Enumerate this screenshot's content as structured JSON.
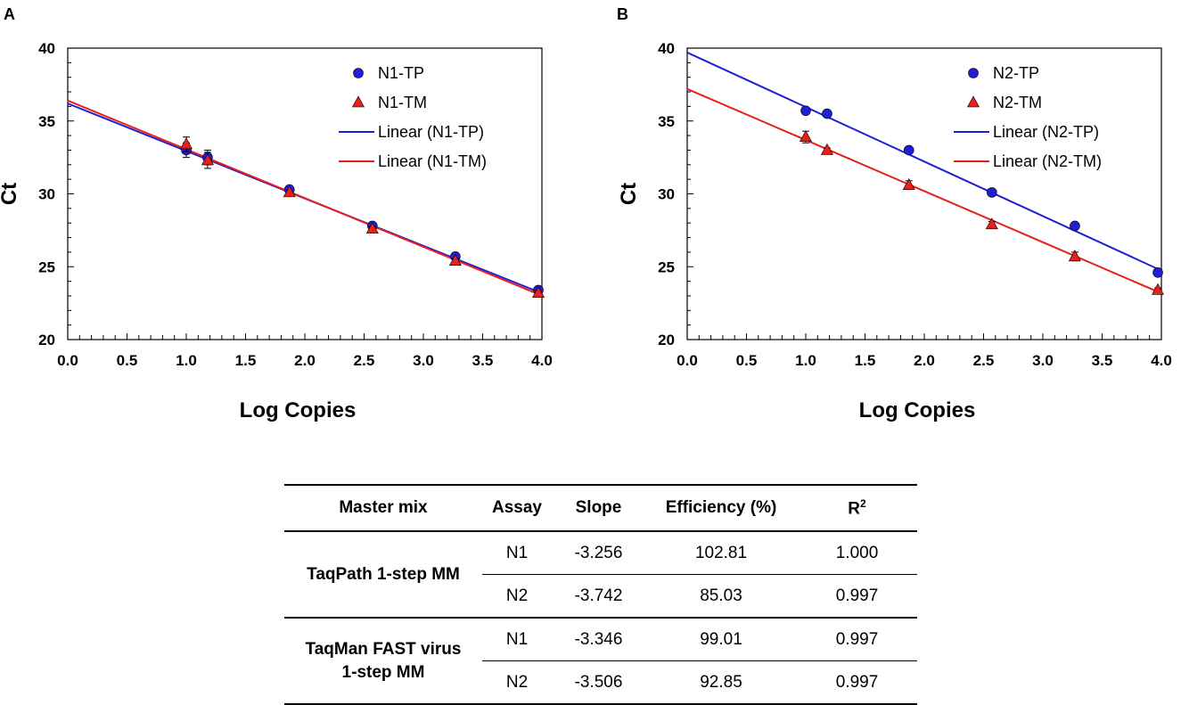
{
  "chart_data": [
    {
      "panel_label": "A",
      "type": "scatter",
      "xlabel": "Log Copies",
      "ylabel": "Ct",
      "xlim": [
        0.0,
        4.0
      ],
      "ylim": [
        20,
        40
      ],
      "xticks": [
        "0.0",
        "0.5",
        "1.0",
        "1.5",
        "2.0",
        "2.5",
        "3.0",
        "3.5",
        "4.0"
      ],
      "yticks": [
        "20",
        "25",
        "30",
        "35",
        "40"
      ],
      "series": [
        {
          "name": "N1-TP",
          "marker": "circle",
          "color": "#1f1fd6",
          "x": [
            1.0,
            1.18,
            1.87,
            2.57,
            3.27,
            3.97
          ],
          "y": [
            33.0,
            32.5,
            30.3,
            27.8,
            25.7,
            23.4
          ],
          "err": [
            0.5,
            0.5,
            0.15,
            0.15,
            0.15,
            0.1
          ]
        },
        {
          "name": "N1-TM",
          "marker": "triangle",
          "color": "#e8201a",
          "x": [
            1.0,
            1.18,
            1.87,
            2.57,
            3.27,
            3.97
          ],
          "y": [
            33.4,
            32.3,
            30.1,
            27.6,
            25.4,
            23.2
          ],
          "err": [
            0.5,
            0.55,
            0.15,
            0.15,
            0.15,
            0.1
          ]
        }
      ],
      "trendlines": [
        {
          "name": "Linear (N1-TP)",
          "color": "#1f1fd6",
          "slope": -3.256,
          "intercept": 36.2
        },
        {
          "name": "Linear (N1-TM)",
          "color": "#e8201a",
          "slope": -3.346,
          "intercept": 36.4
        }
      ]
    },
    {
      "panel_label": "B",
      "type": "scatter",
      "xlabel": "Log Copies",
      "ylabel": "Ct",
      "xlim": [
        0.0,
        4.0
      ],
      "ylim": [
        20,
        40
      ],
      "xticks": [
        "0.0",
        "0.5",
        "1.0",
        "1.5",
        "2.0",
        "2.5",
        "3.0",
        "3.5",
        "4.0"
      ],
      "yticks": [
        "20",
        "25",
        "30",
        "35",
        "40"
      ],
      "series": [
        {
          "name": "N2-TP",
          "marker": "circle",
          "color": "#1f1fd6",
          "x": [
            1.0,
            1.18,
            1.87,
            2.57,
            3.27,
            3.97
          ],
          "y": [
            35.7,
            35.5,
            33.0,
            30.1,
            27.8,
            24.6
          ],
          "err": [
            0.1,
            0.1,
            0.15,
            0.1,
            0.1,
            0.1
          ]
        },
        {
          "name": "N2-TM",
          "marker": "triangle",
          "color": "#e8201a",
          "x": [
            1.0,
            1.18,
            1.87,
            2.57,
            3.27,
            3.97
          ],
          "y": [
            33.9,
            33.0,
            30.6,
            27.9,
            25.7,
            23.4
          ],
          "err": [
            0.4,
            0.15,
            0.3,
            0.2,
            0.3,
            0.15
          ]
        }
      ],
      "trendlines": [
        {
          "name": "Linear (N2-TP)",
          "color": "#1f1fd6",
          "slope": -3.742,
          "intercept": 39.7
        },
        {
          "name": "Linear (N2-TM)",
          "color": "#e8201a",
          "slope": -3.506,
          "intercept": 37.2
        }
      ]
    }
  ],
  "table": {
    "headers": [
      "Master mix",
      "Assay",
      "Slope",
      "Efficiency (%)",
      "R"
    ],
    "r2_sup": "2",
    "groups": [
      {
        "master_mix": "TaqPath 1-step MM",
        "rows": [
          {
            "assay": "N1",
            "slope": "-3.256",
            "efficiency": "102.81",
            "r2": "1.000"
          },
          {
            "assay": "N2",
            "slope": "-3.742",
            "efficiency": "85.03",
            "r2": "0.997"
          }
        ]
      },
      {
        "master_mix_line1": "TaqMan FAST virus",
        "master_mix_line2": "1-step MM",
        "rows": [
          {
            "assay": "N1",
            "slope": "-3.346",
            "efficiency": "99.01",
            "r2": "0.997"
          },
          {
            "assay": "N2",
            "slope": "-3.506",
            "efficiency": "92.85",
            "r2": "0.997"
          }
        ]
      }
    ]
  }
}
